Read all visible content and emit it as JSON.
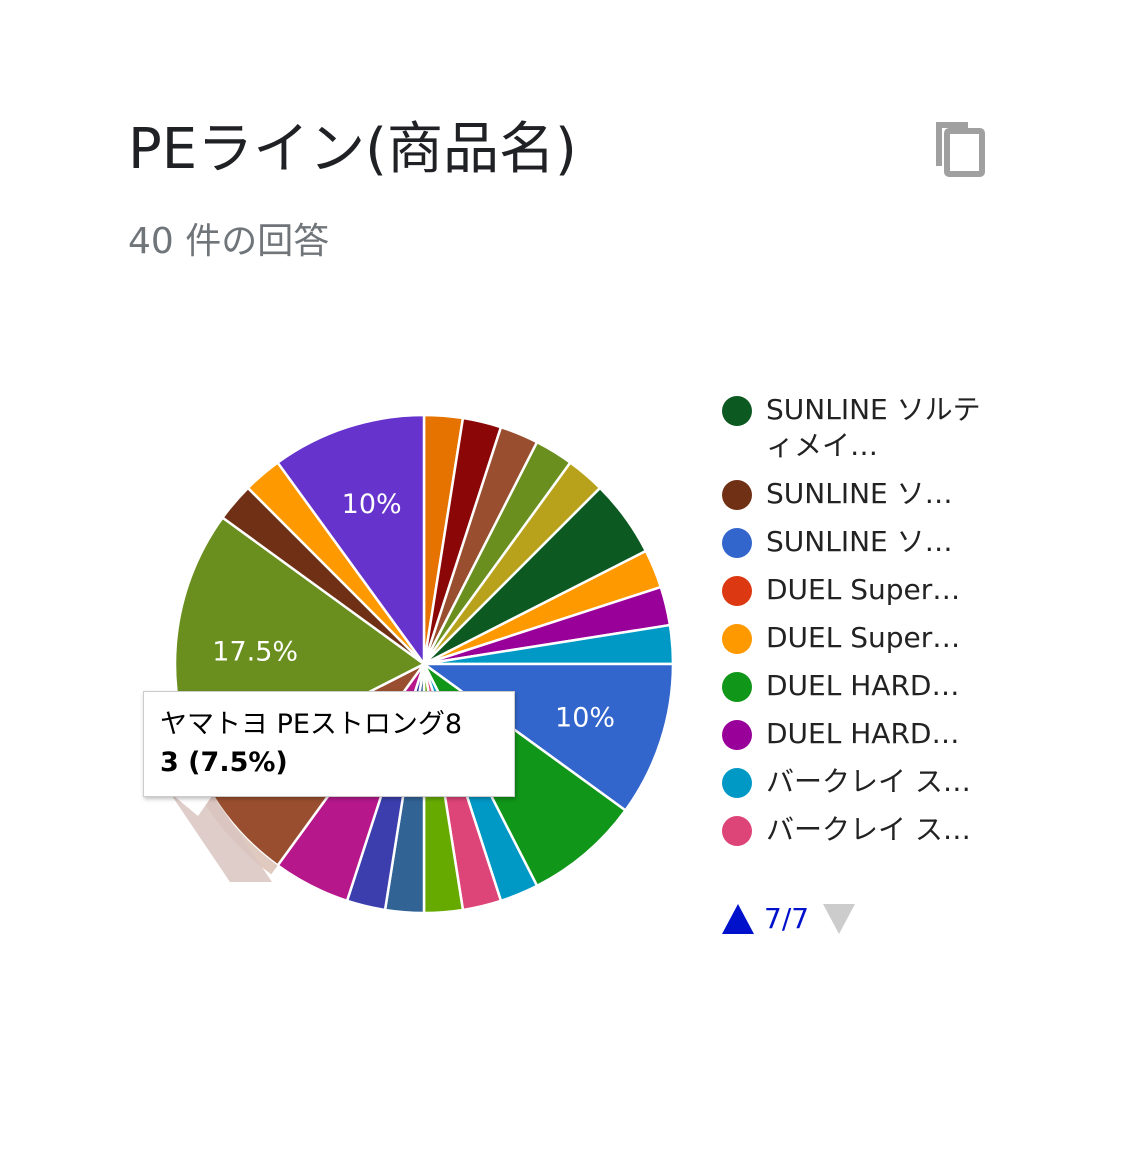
{
  "header": {
    "title": "PEライン(商品名)",
    "response_count": "40 件の回答"
  },
  "icons": {
    "copy": "copy-icon"
  },
  "chart_data": {
    "type": "pie",
    "total": 40,
    "slice_labels_shown": [
      "10%",
      "17.5%",
      "10%"
    ],
    "slices": [
      {
        "color": "#e67300",
        "value": 1
      },
      {
        "color": "#8b0707",
        "value": 1
      },
      {
        "color": "#994f2f",
        "value": 1
      },
      {
        "color": "#6a8f1f",
        "value": 1
      },
      {
        "color": "#b8a21c",
        "value": 1
      },
      {
        "color": "#0c5922",
        "value": 2
      },
      {
        "color": "#ff9900",
        "value": 1
      },
      {
        "color": "#990099",
        "value": 1
      },
      {
        "color": "#0099c6",
        "value": 1
      },
      {
        "color": "#3366cc",
        "value": 4,
        "label": "10%"
      },
      {
        "color": "#109618",
        "value": 3
      },
      {
        "color": "#0099c6",
        "value": 1
      },
      {
        "color": "#dd4477",
        "value": 1
      },
      {
        "color": "#66aa00",
        "value": 1
      },
      {
        "color": "#316395",
        "value": 1
      },
      {
        "color": "#3b3eac",
        "value": 1
      },
      {
        "color": "#b6188c",
        "value": 2
      },
      {
        "color": "#994f2f",
        "value": 3,
        "highlight": true
      },
      {
        "color": "#6a8f1f",
        "value": 7,
        "label": "17.5%"
      },
      {
        "color": "#703015",
        "value": 1
      },
      {
        "color": "#ff9900",
        "value": 1
      },
      {
        "color": "#6633cc",
        "value": 4,
        "label": "10%"
      }
    ],
    "legend": [
      {
        "label": "SUNLINE ソルティメイ…",
        "color": "#0c5922",
        "two_line": true
      },
      {
        "label": "SUNLINE ソ…",
        "color": "#703015"
      },
      {
        "label": "SUNLINE ソ…",
        "color": "#3366cc"
      },
      {
        "label": "DUEL Super…",
        "color": "#dc3912"
      },
      {
        "label": "DUEL Super…",
        "color": "#ff9900"
      },
      {
        "label": "DUEL HARD…",
        "color": "#109618"
      },
      {
        "label": "DUEL HARD…",
        "color": "#990099"
      },
      {
        "label": "バークレイ ス…",
        "color": "#0099c6"
      },
      {
        "label": "バークレイ ス…",
        "color": "#dd4477"
      }
    ],
    "legend_page": "7/7",
    "tooltip": {
      "name": "ヤマトヨ PEストロング8",
      "value": "3 (7.5%)"
    }
  }
}
